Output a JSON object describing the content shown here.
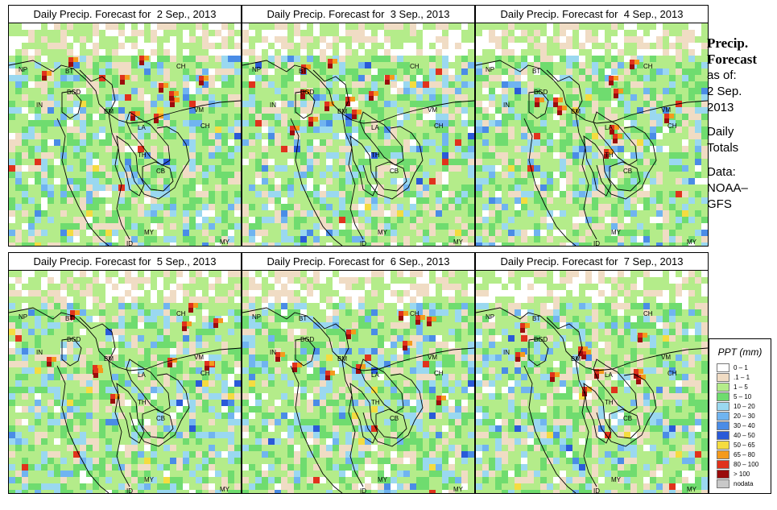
{
  "panels": [
    {
      "title": "Daily Precip. Forecast for  2 Sep., 2013",
      "seed": 11
    },
    {
      "title": "Daily Precip. Forecast for  3 Sep., 2013",
      "seed": 23
    },
    {
      "title": "Daily Precip. Forecast for  4 Sep., 2013",
      "seed": 37
    },
    {
      "title": "Daily Precip. Forecast for  5 Sep., 2013",
      "seed": 41
    },
    {
      "title": "Daily Precip. Forecast for  6 Sep., 2013",
      "seed": 53
    },
    {
      "title": "Daily Precip. Forecast for  7 Sep., 2013",
      "seed": 67
    }
  ],
  "country_labels": [
    "NP",
    "BT",
    "IN",
    "BGD",
    "CH",
    "BM",
    "VM",
    "LA",
    "CH",
    "TH",
    "CB",
    "MY",
    "ID",
    "MY",
    "ID"
  ],
  "sidebar": {
    "title_line1": "Precip.",
    "title_line2": "Forecast",
    "asof": "as of:",
    "date_line1": "2 Sep.",
    "date_line2": "2013",
    "totals_line1": "Daily",
    "totals_line2": "Totals",
    "data_line1": "Data:",
    "data_line2": "NOAA–",
    "data_line3": "GFS"
  },
  "legend": {
    "title": "PPT (mm)",
    "items": [
      {
        "label": "0 – 1",
        "color": "#ffffff"
      },
      {
        "label": ".1 – 1",
        "color": "#f0dcc4"
      },
      {
        "label": "1 – 5",
        "color": "#b4ec8a"
      },
      {
        "label": "5 – 10",
        "color": "#6fdc6f"
      },
      {
        "label": "10 – 20",
        "color": "#9ad8f0"
      },
      {
        "label": "20 – 30",
        "color": "#70b4f0"
      },
      {
        "label": "30 – 40",
        "color": "#4a8ce6"
      },
      {
        "label": "40 – 50",
        "color": "#2a5ad8"
      },
      {
        "label": "50 – 65",
        "color": "#f4dc40"
      },
      {
        "label": "65 – 80",
        "color": "#f49a1c"
      },
      {
        "label": "80 – 100",
        "color": "#e0321c"
      },
      {
        "label": "> 100",
        "color": "#9a0c0c"
      },
      {
        "label": "nodata",
        "color": "#c8c8c8"
      }
    ]
  }
}
